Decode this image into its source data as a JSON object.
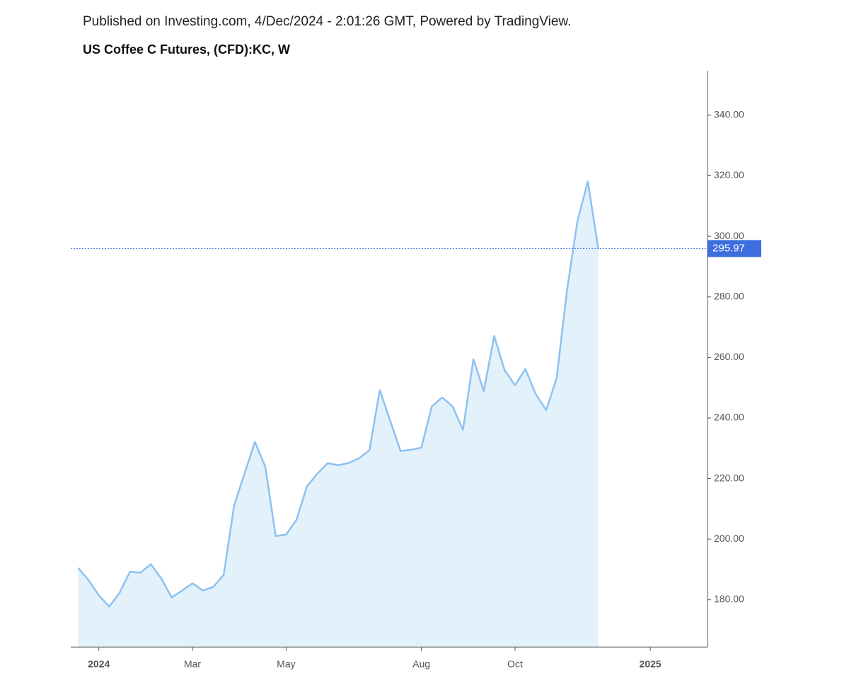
{
  "chart_data": {
    "type": "area",
    "subtitle": "Published on Investing.com, 4/Dec/2024 - 2:01:26 GMT, Powered by TradingView.",
    "title": "US Coffee C Futures, (CFD):KC, W",
    "watermark": {
      "brand": "Investing",
      "suffix": ".com"
    },
    "categories": [
      null,
      null,
      null,
      null,
      null,
      null,
      null,
      null,
      null,
      null,
      null,
      null,
      null,
      null,
      null,
      null,
      null,
      null,
      null,
      null,
      null,
      null,
      null,
      null,
      null,
      null,
      null,
      null,
      null,
      null,
      null,
      null,
      null,
      null,
      null,
      null,
      null,
      null,
      null,
      null,
      null,
      null,
      null,
      null,
      null,
      null,
      null,
      null,
      null,
      null,
      null
    ],
    "values": [
      190.5,
      186.5,
      181.4,
      177.7,
      182.3,
      189.3,
      188.9,
      191.7,
      187,
      180.7,
      183,
      185.4,
      183,
      184.2,
      188.2,
      211.1,
      221.6,
      232.1,
      223.9,
      201,
      201.5,
      206.4,
      217.4,
      221.6,
      225.1,
      224.4,
      225.1,
      226.7,
      229.3,
      249.2,
      239.1,
      229.1,
      229.5,
      230.2,
      243.8,
      246.8,
      243.8,
      236.1,
      259.4,
      248.9,
      267.1,
      255.8,
      250.8,
      256.2,
      247.8,
      242.6,
      253.1,
      282.3,
      305,
      318.1,
      295.97
    ],
    "color": "#8ec1f0",
    "fill_color": "#e3f1fb",
    "last_value_color": "#3d6ee0",
    "xlim": [
      -0.7,
      60.5
    ],
    "xticks": [
      {
        "value": 2,
        "label": "2024"
      },
      {
        "value": 11,
        "label": "Mar"
      },
      {
        "value": 20,
        "label": "May"
      },
      {
        "value": 33,
        "label": "Aug"
      },
      {
        "value": 42,
        "label": "Oct"
      },
      {
        "value": 55,
        "label": "2025"
      }
    ],
    "ylim": [
      164.3,
      354.7
    ],
    "yticks": [
      {
        "value": 180,
        "label": "180.00"
      },
      {
        "value": 200,
        "label": "200.00"
      },
      {
        "value": 220,
        "label": "220.00"
      },
      {
        "value": 240,
        "label": "240.00"
      },
      {
        "value": 260,
        "label": "260.00"
      },
      {
        "value": 280,
        "label": "280.00"
      },
      {
        "value": 300,
        "label": "300.00"
      },
      {
        "value": 320,
        "label": "320.00"
      },
      {
        "value": 340,
        "label": "340.00"
      }
    ]
  }
}
